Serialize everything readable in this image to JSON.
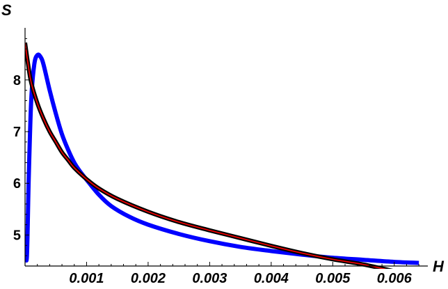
{
  "chart_data": {
    "type": "line",
    "xlabel": "H",
    "ylabel": "S",
    "xlim": [
      0,
      0.0065
    ],
    "ylim": [
      4.4,
      8.9
    ],
    "x_ticks": [
      {
        "value": 0.001,
        "label": "0.001"
      },
      {
        "value": 0.002,
        "label": "0.002"
      },
      {
        "value": 0.003,
        "label": "0.003"
      },
      {
        "value": 0.004,
        "label": "0.004"
      },
      {
        "value": 0.005,
        "label": "0.005"
      },
      {
        "value": 0.006,
        "label": "0.006"
      }
    ],
    "y_ticks": [
      {
        "value": 5,
        "label": "5"
      },
      {
        "value": 6,
        "label": "6"
      },
      {
        "value": 7,
        "label": "7"
      },
      {
        "value": 8,
        "label": "8"
      }
    ],
    "grid": false,
    "legend": "none",
    "series": [
      {
        "color": "#0000ff",
        "stroke_width": 6,
        "x": [
          0,
          3e-05,
          6e-05,
          0.0001,
          0.00015,
          0.0002,
          0.00025,
          0.0003,
          0.0004,
          0.0005,
          0.0006,
          0.0007,
          0.0008,
          0.0009,
          0.001,
          0.0012,
          0.0014,
          0.0017,
          0.002,
          0.0025,
          0.003,
          0.0035,
          0.004,
          0.0045,
          0.005,
          0.0055,
          0.006,
          0.0064
        ],
        "y": [
          4.75,
          4.58,
          6.1,
          7.6,
          8.3,
          8.48,
          8.45,
          8.3,
          7.8,
          7.35,
          6.95,
          6.65,
          6.4,
          6.22,
          6.07,
          5.78,
          5.56,
          5.35,
          5.2,
          5.02,
          4.88,
          4.77,
          4.69,
          4.62,
          4.56,
          4.52,
          4.48,
          4.46
        ]
      },
      {
        "color": "#000000",
        "stroke_width": 6,
        "x": [
          0,
          5e-05,
          0.0001,
          0.0002,
          0.0003,
          0.0004,
          0.0005,
          0.0006,
          0.0007,
          0.0008,
          0.001,
          0.0012,
          0.0015,
          0.002,
          0.0025,
          0.003,
          0.0035,
          0.004,
          0.0045,
          0.005,
          0.0055,
          0.006,
          0.0064
        ],
        "y": [
          8.72,
          8.3,
          7.95,
          7.55,
          7.25,
          7.0,
          6.8,
          6.6,
          6.45,
          6.3,
          6.08,
          5.9,
          5.7,
          5.45,
          5.25,
          5.09,
          4.94,
          4.79,
          4.65,
          4.53,
          4.43,
          4.3,
          4.2
        ]
      },
      {
        "color": "#ff0000",
        "stroke_width": 1.6,
        "x": [
          0,
          5e-05,
          0.0001,
          0.0002,
          0.0003,
          0.0004,
          0.0005,
          0.0006,
          0.0007,
          0.0008,
          0.001,
          0.0012,
          0.0015,
          0.002,
          0.0025,
          0.003,
          0.0035,
          0.004,
          0.0045,
          0.005,
          0.0055,
          0.006,
          0.0064
        ],
        "y": [
          8.72,
          8.3,
          7.95,
          7.55,
          7.25,
          7.0,
          6.8,
          6.6,
          6.45,
          6.3,
          6.08,
          5.9,
          5.7,
          5.45,
          5.25,
          5.09,
          4.94,
          4.79,
          4.65,
          4.53,
          4.43,
          4.3,
          4.2
        ]
      }
    ]
  }
}
